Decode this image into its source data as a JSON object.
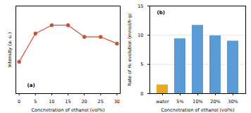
{
  "chart_data": [
    {
      "type": "line",
      "x": [
        0,
        5,
        10,
        15,
        20,
        25,
        30
      ],
      "values": [
        0.38,
        0.72,
        0.82,
        0.82,
        0.68,
        0.68,
        0.6
      ],
      "xlabel": "Concnetration of ethanol (vol%)",
      "ylabel": "Intensity (a. u.)",
      "annotations": [
        "(a)"
      ],
      "color": "#c8523a",
      "marker": "circle",
      "xlim": [
        -1,
        31
      ],
      "xticks": [
        0,
        5,
        10,
        15,
        20,
        25,
        30
      ],
      "ylim": [
        0.0,
        1.05
      ],
      "tick_labels": "x"
    },
    {
      "type": "bar",
      "categories": [
        "water",
        "5%",
        "10%",
        "20%",
        "30%"
      ],
      "values": [
        1.5,
        9.4,
        11.7,
        9.9,
        9.0
      ],
      "colors": [
        "#e8a820",
        "#5b9bd5",
        "#5b9bd5",
        "#5b9bd5",
        "#5b9bd5"
      ],
      "xlabel": "Concnetration of ethanol (vol%)",
      "ylabel": "Rate of H₂ evolution (mmol/h·g)",
      "annotations": [
        "(b)"
      ],
      "ylim": [
        0,
        15
      ],
      "yticks": [
        0,
        5,
        10,
        15
      ],
      "grid": true
    }
  ]
}
